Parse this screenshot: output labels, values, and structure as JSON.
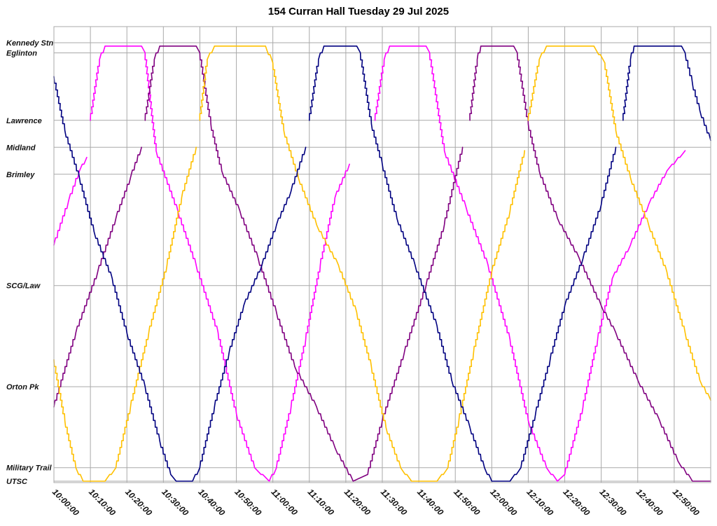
{
  "chart_data": {
    "type": "line",
    "title": "154 Curran Hall Tuesday 29 Jul 2025",
    "xlim": [
      "10:00:00",
      "13:00:00"
    ],
    "x_ticks": [
      "10:00:00",
      "10:10:00",
      "10:20:00",
      "10:30:00",
      "10:40:00",
      "10:50:00",
      "11:00:00",
      "11:10:00",
      "11:20:00",
      "11:30:00",
      "11:40:00",
      "11:50:00",
      "12:00:00",
      "12:10:00",
      "12:20:00",
      "12:30:00",
      "12:40:00",
      "12:50:00"
    ],
    "y_stops": [
      {
        "name": "Kennedy Stn",
        "km": 0.0
      },
      {
        "name": "Eglinton",
        "km": 0.15
      },
      {
        "name": "Lawrence",
        "km": 1.15
      },
      {
        "name": "Midland",
        "km": 1.55
      },
      {
        "name": "Brimley",
        "km": 1.95
      },
      {
        "name": "SCG/Law",
        "km": 3.6
      },
      {
        "name": "Orton Pk",
        "km": 5.1
      },
      {
        "name": "Military Trail",
        "km": 6.3
      },
      {
        "name": "UTSC",
        "km": 6.5
      }
    ],
    "grid": true,
    "series": [
      {
        "color": "#ff00ff",
        "trips": [
          [
            [
              "10:00:00",
              3.0
            ],
            [
              "10:04:00",
              2.35
            ],
            [
              "10:07:00",
              1.9
            ],
            [
              "10:09:00",
              1.7
            ]
          ],
          [
            [
              "10:10:00",
              1.15
            ],
            [
              "10:12:30",
              0.25
            ],
            [
              "10:14:00",
              0.05
            ],
            [
              "10:24:00",
              0.05
            ],
            [
              "10:25:00",
              0.15
            ],
            [
              "10:28:00",
              1.6
            ],
            [
              "10:34:00",
              2.5
            ],
            [
              "10:39:00",
              3.3
            ],
            [
              "10:45:00",
              4.3
            ],
            [
              "10:50:00",
              5.5
            ],
            [
              "10:55:00",
              6.3
            ],
            [
              "10:59:00",
              6.5
            ],
            [
              "11:01:00",
              6.3
            ],
            [
              "11:05:00",
              5.4
            ],
            [
              "11:09:00",
              4.4
            ],
            [
              "11:13:00",
              3.3
            ],
            [
              "11:17:00",
              2.3
            ],
            [
              "11:21:00",
              1.8
            ]
          ],
          [
            [
              "11:28:00",
              1.15
            ],
            [
              "11:30:30",
              0.25
            ],
            [
              "11:32:00",
              0.05
            ],
            [
              "11:42:00",
              0.05
            ],
            [
              "11:43:00",
              0.15
            ],
            [
              "11:47:00",
              1.6
            ],
            [
              "11:53:00",
              2.45
            ],
            [
              "11:59:00",
              3.3
            ],
            [
              "12:05:00",
              4.4
            ],
            [
              "12:10:00",
              5.6
            ],
            [
              "12:15:00",
              6.3
            ],
            [
              "12:18:00",
              6.5
            ],
            [
              "12:20:00",
              6.4
            ],
            [
              "12:25:00",
              5.4
            ],
            [
              "12:29:00",
              4.4
            ],
            [
              "12:33:00",
              3.5
            ],
            [
              "12:38:00",
              3.0
            ],
            [
              "12:43:00",
              2.4
            ],
            [
              "12:48:00",
              1.9
            ],
            [
              "12:53:00",
              1.6
            ]
          ]
        ]
      },
      {
        "color": "#800080",
        "trips": [
          [
            [
              "10:00:00",
              5.4
            ],
            [
              "10:06:00",
              4.3
            ],
            [
              "10:12:00",
              3.4
            ],
            [
              "10:17:00",
              2.6
            ],
            [
              "10:21:00",
              2.0
            ],
            [
              "10:24:00",
              1.55
            ]
          ],
          [
            [
              "10:25:00",
              1.15
            ],
            [
              "10:27:30",
              0.25
            ],
            [
              "10:29:00",
              0.05
            ],
            [
              "10:39:00",
              0.05
            ],
            [
              "10:40:00",
              0.15
            ],
            [
              "10:43:00",
              1.2
            ],
            [
              "10:46:00",
              1.9
            ],
            [
              "10:51:00",
              2.5
            ],
            [
              "10:56:00",
              3.2
            ],
            [
              "11:01:00",
              4.0
            ],
            [
              "11:06:00",
              4.8
            ],
            [
              "11:12:00",
              5.4
            ],
            [
              "11:17:00",
              6.0
            ],
            [
              "11:22:00",
              6.5
            ],
            [
              "11:26:00",
              6.4
            ],
            [
              "11:30:00",
              5.6
            ],
            [
              "11:36:00",
              4.6
            ],
            [
              "11:42:00",
              3.6
            ],
            [
              "11:47:00",
              2.7
            ],
            [
              "11:52:00",
              1.55
            ]
          ],
          [
            [
              "11:54:00",
              1.15
            ],
            [
              "11:56:00",
              0.25
            ],
            [
              "11:57:00",
              0.05
            ],
            [
              "12:06:00",
              0.05
            ],
            [
              "12:07:00",
              0.15
            ],
            [
              "12:10:00",
              1.2
            ],
            [
              "12:13:00",
              1.9
            ],
            [
              "12:18:00",
              2.6
            ],
            [
              "12:24:00",
              3.2
            ],
            [
              "12:30:00",
              3.9
            ],
            [
              "12:34:00",
              4.3
            ],
            [
              "12:40:00",
              5.0
            ],
            [
              "12:46:00",
              5.6
            ],
            [
              "12:51:00",
              6.2
            ],
            [
              "12:55:00",
              6.5
            ],
            [
              "13:00:00",
              6.5
            ]
          ]
        ]
      },
      {
        "color": "#ffc000",
        "trips": [
          [
            [
              "10:00:00",
              4.7
            ],
            [
              "10:03:00",
              5.6
            ],
            [
              "10:06:00",
              6.3
            ],
            [
              "10:08:00",
              6.5
            ],
            [
              "10:14:00",
              6.5
            ],
            [
              "10:17:00",
              6.3
            ],
            [
              "10:21:00",
              5.4
            ],
            [
              "10:26:00",
              4.3
            ],
            [
              "10:31:00",
              3.3
            ],
            [
              "10:35:00",
              2.3
            ],
            [
              "10:39:00",
              1.55
            ]
          ],
          [
            [
              "10:40:00",
              1.15
            ],
            [
              "10:42:00",
              0.25
            ],
            [
              "10:44:00",
              0.05
            ],
            [
              "10:58:00",
              0.05
            ],
            [
              "11:00:00",
              0.3
            ],
            [
              "11:03:00",
              1.3
            ],
            [
              "11:07:00",
              2.0
            ],
            [
              "11:12:00",
              2.7
            ],
            [
              "11:18:00",
              3.3
            ],
            [
              "11:23:00",
              4.0
            ],
            [
              "11:27:00",
              4.8
            ],
            [
              "11:31:00",
              5.7
            ],
            [
              "11:35:00",
              6.3
            ],
            [
              "11:38:00",
              6.5
            ],
            [
              "11:45:00",
              6.5
            ],
            [
              "11:48:00",
              6.3
            ],
            [
              "11:51:00",
              5.6
            ],
            [
              "11:55:00",
              4.6
            ],
            [
              "12:00:00",
              3.4
            ],
            [
              "12:05:00",
              2.5
            ],
            [
              "12:09:00",
              1.6
            ]
          ],
          [
            [
              "12:10:00",
              1.15
            ],
            [
              "12:13:00",
              0.25
            ],
            [
              "12:15:00",
              0.05
            ],
            [
              "12:28:00",
              0.05
            ],
            [
              "12:31:00",
              0.3
            ],
            [
              "12:34:00",
              1.3
            ],
            [
              "12:38:00",
              2.0
            ],
            [
              "12:43:00",
              2.7
            ],
            [
              "12:48:00",
              3.4
            ],
            [
              "12:53:00",
              4.3
            ],
            [
              "12:57:00",
              5.0
            ],
            [
              "13:00:00",
              5.3
            ]
          ]
        ]
      },
      {
        "color": "#000080",
        "trips": [
          [
            [
              "10:00:00",
              0.5
            ],
            [
              "10:03:00",
              1.3
            ],
            [
              "10:07:00",
              2.0
            ],
            [
              "10:11:00",
              2.8
            ],
            [
              "10:16:00",
              3.5
            ],
            [
              "10:20:00",
              4.3
            ],
            [
              "10:25:00",
              5.1
            ],
            [
              "10:29:00",
              5.9
            ],
            [
              "10:32:00",
              6.4
            ],
            [
              "10:33:30",
              6.5
            ],
            [
              "10:38:00",
              6.5
            ],
            [
              "10:40:00",
              6.3
            ],
            [
              "10:44:00",
              5.4
            ],
            [
              "10:48:00",
              4.6
            ],
            [
              "10:52:00",
              3.9
            ],
            [
              "10:57:00",
              3.3
            ],
            [
              "11:01:00",
              2.7
            ],
            [
              "11:05:00",
              2.2
            ],
            [
              "11:09:00",
              1.55
            ]
          ],
          [
            [
              "11:10:00",
              1.15
            ],
            [
              "11:12:30",
              0.25
            ],
            [
              "11:14:00",
              0.05
            ],
            [
              "11:23:00",
              0.05
            ],
            [
              "11:24:00",
              0.15
            ],
            [
              "11:27:00",
              1.2
            ],
            [
              "11:30:00",
              1.8
            ],
            [
              "11:34:00",
              2.6
            ],
            [
              "11:39:00",
              3.3
            ],
            [
              "11:45:00",
              4.2
            ],
            [
              "11:49:00",
              5.0
            ],
            [
              "11:54:00",
              5.7
            ],
            [
              "11:58:00",
              6.3
            ],
            [
              "12:00:00",
              6.5
            ],
            [
              "12:05:00",
              6.5
            ],
            [
              "12:08:00",
              6.3
            ],
            [
              "12:12:00",
              5.5
            ],
            [
              "12:16:00",
              4.7
            ],
            [
              "12:20:00",
              3.9
            ],
            [
              "12:25:00",
              3.2
            ],
            [
              "12:30:00",
              2.4
            ],
            [
              "12:34:00",
              1.55
            ]
          ],
          [
            [
              "12:36:00",
              1.15
            ],
            [
              "12:38:00",
              0.25
            ],
            [
              "12:39:00",
              0.05
            ],
            [
              "12:52:00",
              0.05
            ],
            [
              "12:53:00",
              0.15
            ],
            [
              "12:55:00",
              0.6
            ],
            [
              "12:57:00",
              1.0
            ],
            [
              "13:00:00",
              1.45
            ]
          ]
        ]
      }
    ]
  }
}
